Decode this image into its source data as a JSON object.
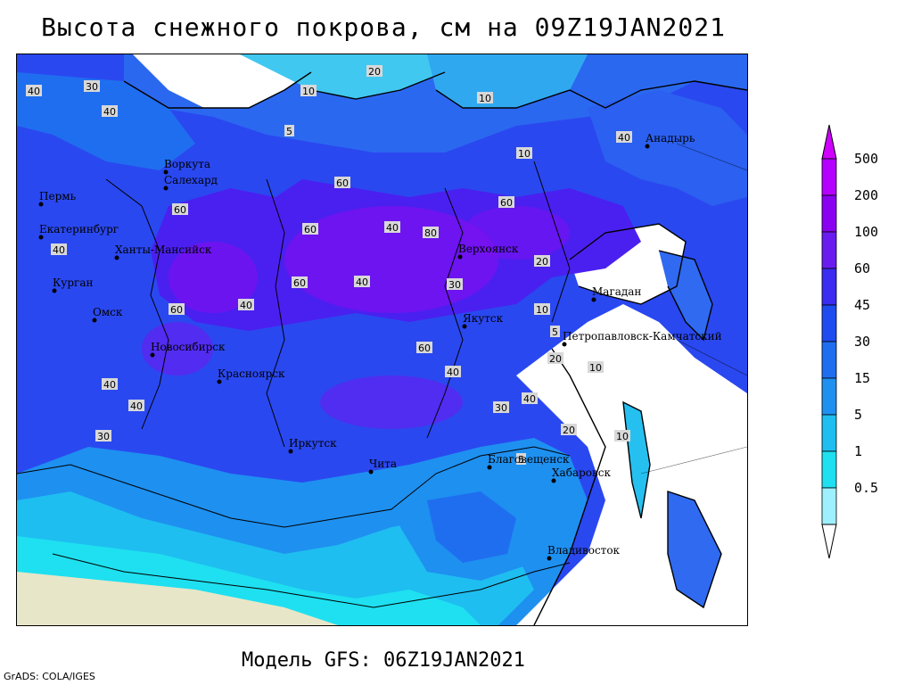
{
  "title": "Высота снежного покрова, см на 09Z19JAN2021",
  "subtitle": "Модель GFS: 06Z19JAN2021",
  "credit": "GrADS: COLA/IGES",
  "legend": {
    "levels": [
      "500",
      "200",
      "100",
      "60",
      "45",
      "30",
      "15",
      "5",
      "1",
      "0.5"
    ],
    "colors": [
      "#b400ff",
      "#8a00f0",
      "#6a1cf0",
      "#3a2cf0",
      "#1f4cf0",
      "#1f6ef0",
      "#1e90f0",
      "#1ebef0",
      "#1ee0f0",
      "#9ef0ff"
    ]
  },
  "cities": [
    {
      "name": "Воркута"
    },
    {
      "name": "Салехард"
    },
    {
      "name": "Пермь"
    },
    {
      "name": "Екатеринбург"
    },
    {
      "name": "Ханты-Мансийск"
    },
    {
      "name": "Курган"
    },
    {
      "name": "Омск"
    },
    {
      "name": "Новосибирск"
    },
    {
      "name": "Красноярск"
    },
    {
      "name": "Иркутск"
    },
    {
      "name": "Чита"
    },
    {
      "name": "Якутск"
    },
    {
      "name": "Верхоянск"
    },
    {
      "name": "Магадан"
    },
    {
      "name": "Анадырь"
    },
    {
      "name": "Петропавловск-Камчатский"
    },
    {
      "name": "Благовещенск"
    },
    {
      "name": "Хабаровск"
    },
    {
      "name": "Владивосток"
    }
  ],
  "contour_labels": [
    "40",
    "30",
    "40",
    "10",
    "20",
    "10",
    "5",
    "10",
    "40",
    "60",
    "60",
    "40",
    "80",
    "60",
    "60",
    "60",
    "40",
    "30",
    "20",
    "10",
    "5",
    "20",
    "10",
    "40",
    "40",
    "60",
    "40",
    "60",
    "40",
    "40",
    "30",
    "20",
    "10",
    "5",
    "40",
    "30"
  ]
}
